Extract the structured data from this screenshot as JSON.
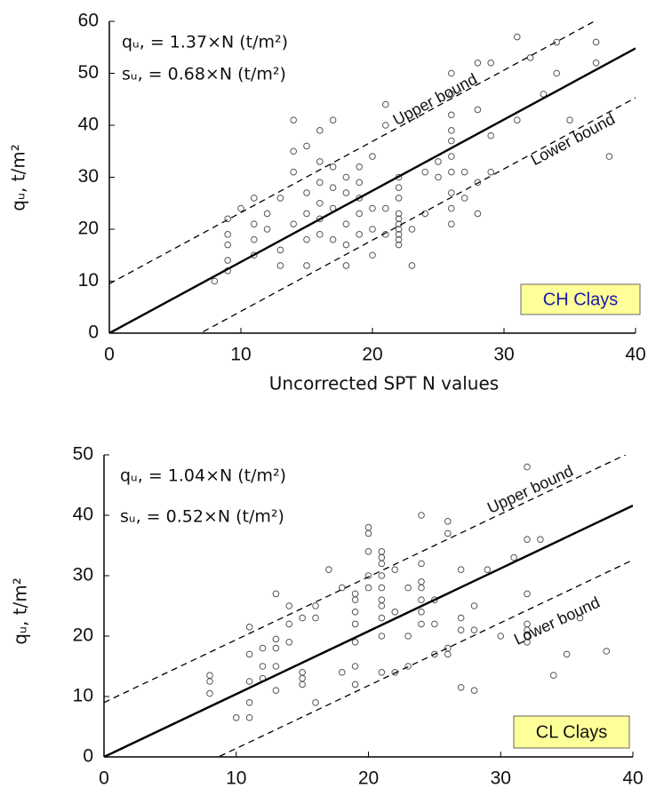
{
  "chart_data": [
    {
      "type": "scatter",
      "equations": [
        "qᵤ, = 1.37×N (t/m²)",
        "sᵤ, = 0.68×N (t/m²)"
      ],
      "ylabel": "qᵤ, t/m²",
      "xlabel": "Uncorrected SPT N values",
      "line_labels": [
        "Upper bound",
        "Lower bound"
      ],
      "box_label": "CH Clays",
      "box_color": "#ffff99",
      "box_text_color": "#1a1aa8",
      "xlim": [
        0,
        40
      ],
      "ylim": [
        0,
        60
      ],
      "xticks": [
        0,
        10,
        20,
        30,
        40
      ],
      "yticks": [
        0,
        10,
        20,
        30,
        40,
        50,
        60
      ],
      "series": [
        {
          "type": "scatter",
          "color": "#555555",
          "x": [
            8,
            9,
            9,
            9,
            9,
            9,
            10,
            11,
            11,
            11,
            11,
            12,
            12,
            13,
            13,
            13,
            14,
            14,
            14,
            14,
            15,
            15,
            15,
            15,
            15,
            16,
            16,
            16,
            16,
            16,
            16,
            17,
            17,
            17,
            17,
            17,
            18,
            18,
            18,
            18,
            18,
            19,
            19,
            19,
            19,
            19,
            20,
            20,
            20,
            20,
            21,
            21,
            21,
            21,
            22,
            22,
            22,
            22,
            22,
            22,
            22,
            22,
            22,
            22,
            23,
            23,
            24,
            24,
            25,
            25,
            26,
            26,
            26,
            26,
            26,
            26,
            26,
            26,
            26,
            26,
            27,
            27,
            28,
            28,
            28,
            28,
            29,
            29,
            29,
            31,
            31,
            32,
            33,
            34,
            34,
            35,
            37,
            37,
            38
          ],
          "values": [
            10,
            12,
            14,
            17,
            19,
            22,
            24,
            15,
            18,
            21,
            26,
            20,
            23,
            13,
            16,
            26,
            21,
            31,
            35,
            41,
            13,
            18,
            23,
            27,
            36,
            19,
            22,
            25,
            29,
            33,
            39,
            18,
            24,
            28,
            32,
            41,
            13,
            17,
            21,
            27,
            30,
            19,
            23,
            26,
            29,
            32,
            15,
            20,
            24,
            34,
            19,
            24,
            44,
            40,
            17,
            18,
            19,
            20,
            21,
            22,
            23,
            26,
            28,
            30,
            13,
            20,
            23,
            31,
            30,
            33,
            21,
            24,
            27,
            31,
            34,
            37,
            39,
            42,
            46,
            50,
            31,
            26,
            23,
            29,
            43,
            52,
            31,
            38,
            52,
            41,
            57,
            53,
            46,
            50,
            56,
            41,
            56,
            52,
            34
          ]
        },
        {
          "type": "line",
          "color": "#000000",
          "dash": false,
          "x": [
            0,
            40
          ],
          "values": [
            0,
            54.8
          ]
        },
        {
          "type": "line",
          "color": "#000000",
          "dash": true,
          "x": [
            0,
            40
          ],
          "values": [
            9.5,
            64.3
          ]
        },
        {
          "type": "line",
          "color": "#000000",
          "dash": true,
          "x": [
            0,
            40
          ],
          "values": [
            -9.5,
            45.3
          ]
        }
      ]
    },
    {
      "type": "scatter",
      "equations": [
        "qᵤ, = 1.04×N (t/m²)",
        "sᵤ, = 0.52×N (t/m²)"
      ],
      "ylabel": "qᵤ, t/m²",
      "line_labels": [
        "Upper bound",
        "Lower bound"
      ],
      "box_label": "CL Clays",
      "box_color": "#ffff99",
      "box_text_color": "#111111",
      "xlim": [
        0,
        40
      ],
      "ylim": [
        0,
        50
      ],
      "xticks": [
        0,
        10,
        20,
        30,
        40
      ],
      "yticks": [
        0,
        10,
        20,
        30,
        40,
        50
      ],
      "series": [
        {
          "type": "scatter",
          "color": "#555555",
          "x": [
            8,
            8,
            8,
            10,
            11,
            11,
            11,
            11,
            11,
            12,
            12,
            12,
            13,
            13,
            13,
            13,
            13,
            14,
            14,
            14,
            15,
            15,
            15,
            15,
            16,
            16,
            16,
            17,
            18,
            18,
            19,
            19,
            19,
            19,
            19,
            19,
            19,
            20,
            20,
            20,
            20,
            20,
            21,
            21,
            21,
            21,
            21,
            21,
            21,
            21,
            21,
            21,
            22,
            22,
            22,
            23,
            23,
            23,
            24,
            24,
            24,
            24,
            24,
            24,
            24,
            25,
            25,
            25,
            26,
            26,
            26,
            26,
            27,
            27,
            27,
            27,
            28,
            28,
            28,
            29,
            30,
            31,
            32,
            32,
            32,
            32,
            32,
            32,
            32,
            33,
            34,
            35,
            36,
            38
          ],
          "values": [
            10.5,
            12.5,
            13.5,
            6.5,
            6.5,
            9,
            12.5,
            17,
            21.5,
            13,
            15,
            18,
            11,
            15,
            18,
            19.5,
            27,
            19,
            22,
            25,
            12,
            13,
            14,
            23,
            9,
            23,
            25,
            31,
            14,
            28,
            12,
            15,
            19,
            22,
            24,
            26,
            27,
            28,
            30,
            34,
            37,
            38,
            14,
            20,
            23,
            25,
            26,
            28,
            30,
            32,
            33,
            34,
            14,
            24,
            31,
            15,
            20,
            28,
            22,
            24,
            26,
            28,
            29,
            32,
            40,
            17,
            22,
            26,
            17,
            18,
            37,
            39,
            11.5,
            21,
            23,
            31,
            11,
            21,
            25,
            31,
            20,
            33,
            19,
            20,
            21,
            22,
            27,
            36,
            48,
            36,
            13.5,
            17,
            23,
            17.5
          ]
        },
        {
          "type": "line",
          "color": "#000000",
          "dash": false,
          "x": [
            0,
            40
          ],
          "values": [
            0,
            41.6
          ]
        },
        {
          "type": "line",
          "color": "#000000",
          "dash": true,
          "x": [
            0,
            40
          ],
          "values": [
            9,
            50.6
          ]
        },
        {
          "type": "line",
          "color": "#000000",
          "dash": true,
          "x": [
            0,
            40
          ],
          "values": [
            -9,
            32.6
          ]
        }
      ]
    }
  ]
}
